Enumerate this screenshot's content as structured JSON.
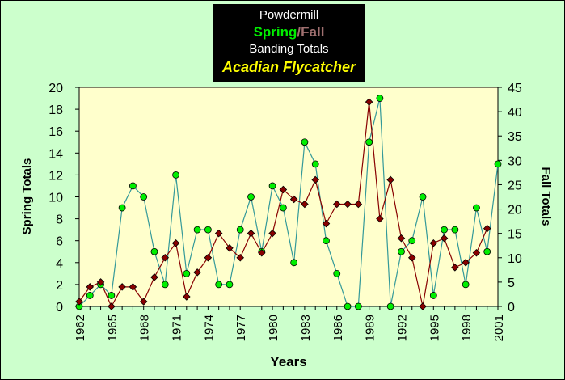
{
  "title": {
    "line1": "Powdermill",
    "spring_word": "Spring",
    "slash": "/",
    "fall_word": "Fall",
    "line3": "Banding Totals",
    "species": "Acadian Flycatcher"
  },
  "colors": {
    "background": "#ccffcc",
    "plot_area": "#ffffcc",
    "spring_marker": "#00ee00",
    "spring_line": "#339999",
    "fall_marker": "#880000",
    "fall_line": "#880000",
    "title_box": "#000000",
    "spring_text": "#00ee00",
    "fall_text": "#a07070",
    "species_text": "#ffff00"
  },
  "chart_data": {
    "type": "line",
    "xlabel": "Years",
    "ylabel_left": "Spring Totals",
    "ylabel_right": "Fall Totals",
    "x": [
      1962,
      1963,
      1964,
      1965,
      1966,
      1967,
      1968,
      1969,
      1970,
      1971,
      1972,
      1973,
      1974,
      1975,
      1976,
      1977,
      1978,
      1979,
      1980,
      1981,
      1982,
      1983,
      1984,
      1985,
      1986,
      1987,
      1988,
      1989,
      1990,
      1991,
      1992,
      1993,
      1994,
      1995,
      1996,
      1997,
      1998,
      1999,
      2000,
      2001
    ],
    "x_tick_labels": [
      "1962",
      "1965",
      "1968",
      "1971",
      "1974",
      "1977",
      "1980",
      "1983",
      "1986",
      "1989",
      "1992",
      "1995",
      "1998",
      "2001"
    ],
    "ylim_left": [
      0,
      20
    ],
    "left_ticks": [
      0,
      2,
      4,
      6,
      8,
      10,
      12,
      14,
      16,
      18,
      20
    ],
    "ylim_right": [
      0,
      45
    ],
    "right_ticks": [
      0,
      5,
      10,
      15,
      20,
      25,
      30,
      35,
      40,
      45
    ],
    "grid": false,
    "series": [
      {
        "name": "Spring",
        "axis": "left",
        "values": [
          0,
          1,
          2,
          1,
          9,
          11,
          10,
          5,
          2,
          12,
          3,
          7,
          7,
          2,
          2,
          7,
          10,
          5,
          11,
          9,
          4,
          15,
          13,
          6,
          3,
          0,
          0,
          15,
          19,
          0,
          5,
          6,
          10,
          1,
          7,
          7,
          2,
          9,
          5,
          13
        ]
      },
      {
        "name": "Fall",
        "axis": "right",
        "values": [
          1,
          4,
          5,
          0,
          4,
          4,
          1,
          6,
          10,
          13,
          2,
          7,
          10,
          15,
          12,
          10,
          15,
          11,
          15,
          24,
          22,
          21,
          26,
          17,
          21,
          21,
          21,
          42,
          18,
          26,
          14,
          10,
          0,
          13,
          14,
          8,
          9,
          11,
          16,
          null
        ]
      }
    ]
  }
}
